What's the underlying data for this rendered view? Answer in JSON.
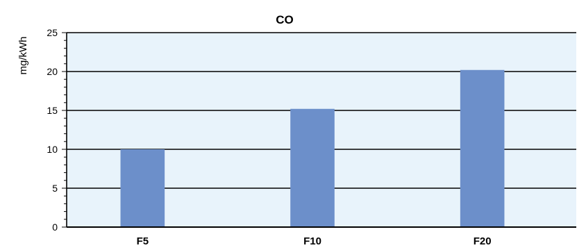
{
  "chart_data": {
    "type": "bar",
    "title": "CO",
    "xlabel": "",
    "ylabel": "mg/kWh",
    "categories": [
      "F5",
      "F10",
      "F20"
    ],
    "values": [
      10,
      15.2,
      20.2
    ],
    "ylim": [
      0,
      25
    ],
    "yticks": [
      0,
      5,
      10,
      15,
      20,
      25
    ],
    "grid": true,
    "legend": "none",
    "colors": {
      "bar": "#6c8fca",
      "plot_background": "#e8f3fb",
      "grid": "#000000",
      "axis": "#000000"
    }
  }
}
